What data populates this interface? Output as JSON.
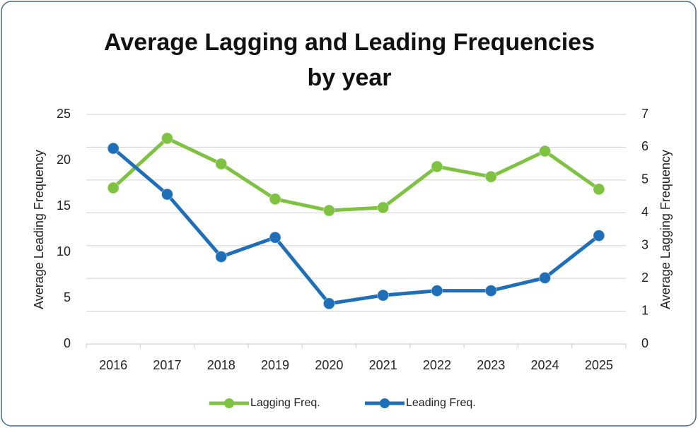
{
  "chart_data": {
    "type": "line",
    "title": [
      "Average Lagging and Leading Frequencies",
      "by year"
    ],
    "y_label": "Average Leading Frequency",
    "y2_label": "Average Lagging Frequency",
    "categories": [
      "2016",
      "2017",
      "2018",
      "2019",
      "2020",
      "2021",
      "2022",
      "2023",
      "2024",
      "2025"
    ],
    "series": [
      {
        "name": "Lagging Freq.",
        "color": "#7fc241",
        "axis": "y2",
        "values": [
          4.76,
          6.27,
          5.49,
          4.42,
          4.07,
          4.16,
          5.41,
          5.1,
          5.88,
          4.72
        ]
      },
      {
        "name": "Leading Freq.",
        "color": "#1f6fb8",
        "values": [
          21.3,
          16.3,
          9.5,
          11.6,
          4.4,
          5.3,
          5.8,
          5.8,
          7.2,
          11.8
        ]
      }
    ],
    "ylim": [
      0,
      25
    ],
    "yticks": [
      0,
      5,
      10,
      15,
      20,
      25
    ],
    "y2lim": [
      0,
      7
    ],
    "y2ticks": [
      0,
      1,
      2,
      3,
      4,
      5,
      6,
      7
    ],
    "grid": true,
    "legend": "bottom"
  }
}
